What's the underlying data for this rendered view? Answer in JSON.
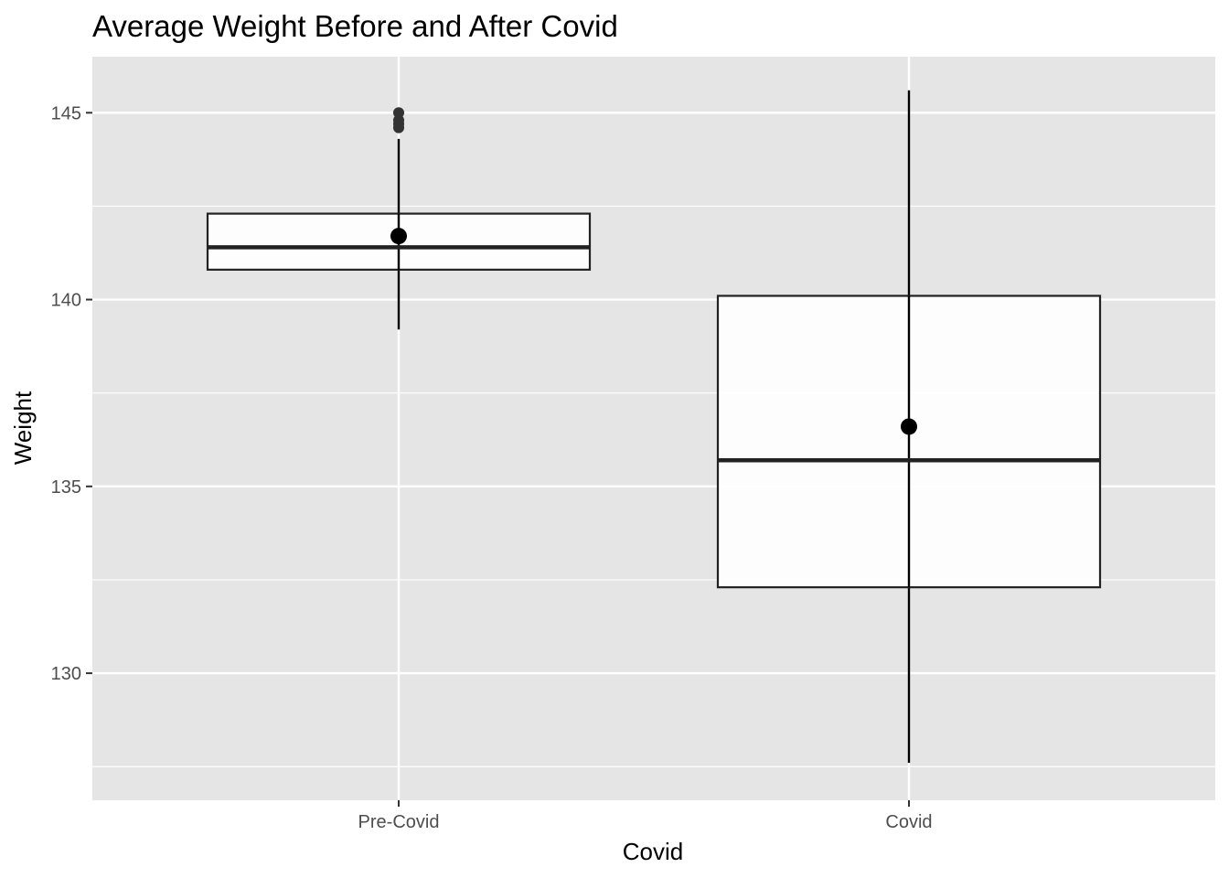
{
  "chart_data": {
    "type": "boxplot",
    "title": "Average Weight Before and After Covid",
    "xlabel": "Covid",
    "ylabel": "Weight",
    "ylim": [
      126.6,
      146.5
    ],
    "yticks": [
      130,
      135,
      140,
      145
    ],
    "grid": true,
    "categories": [
      "Pre-Covid",
      "Covid"
    ],
    "boxes": [
      {
        "category": "Pre-Covid",
        "lower_whisker": 139.2,
        "q1": 140.8,
        "median": 141.4,
        "q3": 142.3,
        "upper_whisker": 144.3,
        "mean": 141.7,
        "outliers": [
          144.6,
          144.7,
          144.8,
          145.0
        ]
      },
      {
        "category": "Covid",
        "lower_whisker": 127.6,
        "q1": 132.3,
        "median": 135.7,
        "q3": 140.1,
        "upper_whisker": 145.6,
        "mean": 136.6,
        "outliers": []
      }
    ],
    "colors": {
      "panel_background": "#e5e5e5",
      "grid": "#ffffff",
      "box_fill": "#ffffff",
      "box_stroke": "#222222",
      "mean_marker": "#000000",
      "outlier": "#333333",
      "tick_text": "#4d4d4d",
      "title_text": "#000000"
    }
  }
}
